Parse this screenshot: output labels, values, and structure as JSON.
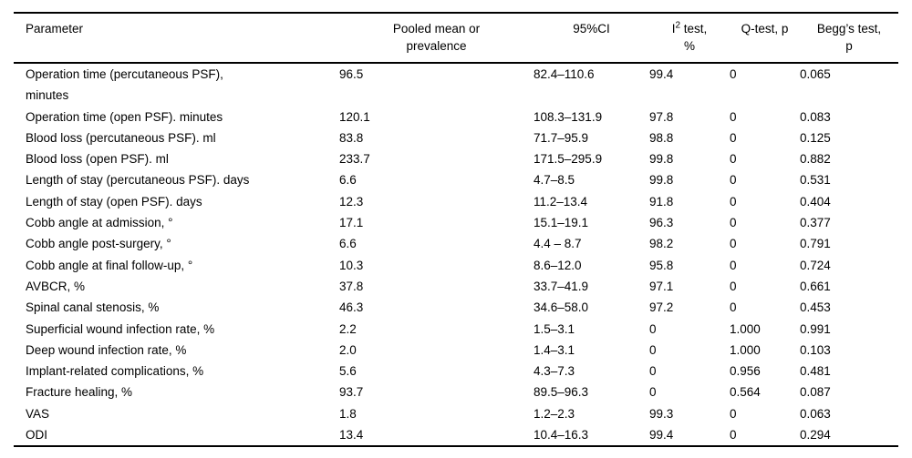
{
  "colors": {
    "background": "#ffffff",
    "text": "#000000",
    "rule": "#000000"
  },
  "table": {
    "columns": {
      "parameter": "Parameter",
      "pooled_line1": "Pooled mean or",
      "pooled_line2": "prevalence",
      "ci": "95%CI",
      "i2_base": "I",
      "i2_sup": "2",
      "i2_rest": " test,",
      "i2_line2": "%",
      "q": "Q-test, p",
      "begg_line1": "Begg’s test,",
      "begg_line2": "p"
    },
    "rows": [
      {
        "parameter": "Operation time (percutaneous PSF), minutes",
        "pooled": "96.5",
        "ci": "82.4–110.6",
        "i2": "99.4",
        "q": "0",
        "begg": "0.065"
      },
      {
        "parameter": "Operation time (open PSF). minutes",
        "pooled": "120.1",
        "ci": "108.3–131.9",
        "i2": "97.8",
        "q": "0",
        "begg": "0.083"
      },
      {
        "parameter": "Blood loss (percutaneous PSF). ml",
        "pooled": "83.8",
        "ci": "71.7–95.9",
        "i2": "98.8",
        "q": "0",
        "begg": "0.125"
      },
      {
        "parameter": "Blood loss (open PSF). ml",
        "pooled": "233.7",
        "ci": "171.5–295.9",
        "i2": "99.8",
        "q": "0",
        "begg": "0.882"
      },
      {
        "parameter": "Length of stay (percutaneous PSF). days",
        "pooled": "6.6",
        "ci": "4.7–8.5",
        "i2": "99.8",
        "q": "0",
        "begg": "0.531"
      },
      {
        "parameter": "Length of stay (open PSF). days",
        "pooled": "12.3",
        "ci": "11.2–13.4",
        "i2": "91.8",
        "q": "0",
        "begg": "0.404"
      },
      {
        "parameter": "Cobb angle at admission, °",
        "pooled": "17.1",
        "ci": "15.1–19.1",
        "i2": "96.3",
        "q": "0",
        "begg": "0.377"
      },
      {
        "parameter": "Cobb angle post-surgery, °",
        "pooled": "6.6",
        "ci": "4.4 – 8.7",
        "i2": "98.2",
        "q": "0",
        "begg": "0.791"
      },
      {
        "parameter": "Cobb angle at final follow-up, °",
        "pooled": "10.3",
        "ci": "8.6–12.0",
        "i2": "95.8",
        "q": "0",
        "begg": "0.724"
      },
      {
        "parameter": "AVBCR, %",
        "pooled": "37.8",
        "ci": "33.7–41.9",
        "i2": "97.1",
        "q": "0",
        "begg": "0.661"
      },
      {
        "parameter": "Spinal canal stenosis, %",
        "pooled": "46.3",
        "ci": "34.6–58.0",
        "i2": "97.2",
        "q": "0",
        "begg": "0.453"
      },
      {
        "parameter": "Superficial wound infection rate, %",
        "pooled": "2.2",
        "ci": "1.5–3.1",
        "i2": "0",
        "q": "1.000",
        "begg": "0.991"
      },
      {
        "parameter": "Deep wound infection rate, %",
        "pooled": "2.0",
        "ci": "1.4–3.1",
        "i2": "0",
        "q": "1.000",
        "begg": "0.103"
      },
      {
        "parameter": "Implant-related complications, %",
        "pooled": "5.6",
        "ci": "4.3–7.3",
        "i2": "0",
        "q": "0.956",
        "begg": "0.481"
      },
      {
        "parameter": "Fracture healing, %",
        "pooled": "93.7",
        "ci": "89.5–96.3",
        "i2": "0",
        "q": "0.564",
        "begg": "0.087"
      },
      {
        "parameter": "VAS",
        "pooled": "1.8",
        "ci": "1.2–2.3",
        "i2": "99.3",
        "q": "0",
        "begg": "0.063"
      },
      {
        "parameter": "ODI",
        "pooled": "13.4",
        "ci": "10.4–16.3",
        "i2": "99.4",
        "q": "0",
        "begg": "0.294"
      }
    ]
  }
}
